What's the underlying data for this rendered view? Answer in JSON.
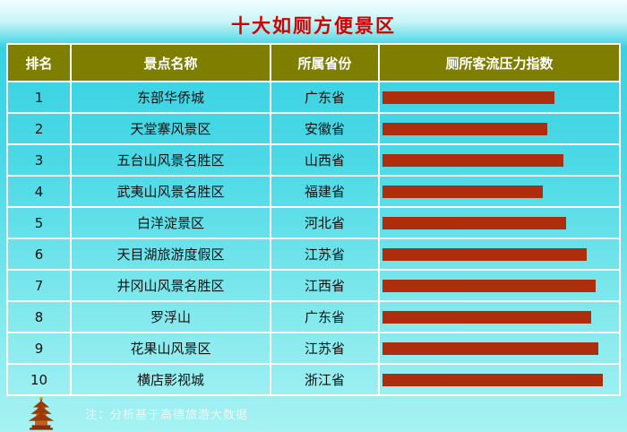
{
  "title": "十大如厕方便景区",
  "note": "注：分析基于高德旅游大数据",
  "colors": {
    "title_red": "#d40000",
    "header_olive": "#7e7e00",
    "bar_red": "#ae2d0d",
    "background_cyan": "#38d2e2",
    "grid_white": "#ffffff"
  },
  "table": {
    "headers": [
      "排名",
      "景点名称",
      "所属省份",
      "厕所客流压力指数"
    ],
    "rows": [
      {
        "rank": "1",
        "name": "东部华侨城",
        "province": "广东省",
        "bar": 74
      },
      {
        "rank": "2",
        "name": "天堂寨风景区",
        "province": "安徽省",
        "bar": 71
      },
      {
        "rank": "3",
        "name": "五台山风景名胜区",
        "province": "山西省",
        "bar": 78
      },
      {
        "rank": "4",
        "name": "武夷山风景名胜区",
        "province": "福建省",
        "bar": 69
      },
      {
        "rank": "5",
        "name": "白洋淀景区",
        "province": "河北省",
        "bar": 79
      },
      {
        "rank": "6",
        "name": "天目湖旅游度假区",
        "province": "江苏省",
        "bar": 88
      },
      {
        "rank": "7",
        "name": "井冈山风景名胜区",
        "province": "江西省",
        "bar": 92
      },
      {
        "rank": "8",
        "name": "罗浮山",
        "province": "广东省",
        "bar": 90
      },
      {
        "rank": "9",
        "name": "花果山风景区",
        "province": "江苏省",
        "bar": 93
      },
      {
        "rank": "10",
        "name": "横店影视城",
        "province": "浙江省",
        "bar": 95
      }
    ]
  },
  "chart_data": {
    "type": "bar",
    "orientation": "horizontal",
    "title": "十大如厕方便景区",
    "series_label": "厕所客流压力指数",
    "categories": [
      "东部华侨城",
      "天堂寨风景区",
      "五台山风景名胜区",
      "武夷山风景名胜区",
      "白洋淀景区",
      "天目湖旅游度假区",
      "井冈山风景名胜区",
      "罗浮山",
      "花果山风景区",
      "横店影视城"
    ],
    "provinces": [
      "广东省",
      "安徽省",
      "山西省",
      "福建省",
      "河北省",
      "江苏省",
      "江西省",
      "广东省",
      "江苏省",
      "浙江省"
    ],
    "values": [
      74,
      71,
      78,
      69,
      79,
      88,
      92,
      90,
      93,
      95
    ],
    "value_unit": "relative index (% of column width, estimated from bar lengths)",
    "annotations": [
      "注：分析基于高德旅游大数据"
    ],
    "legend_position": "none",
    "grid": false
  }
}
